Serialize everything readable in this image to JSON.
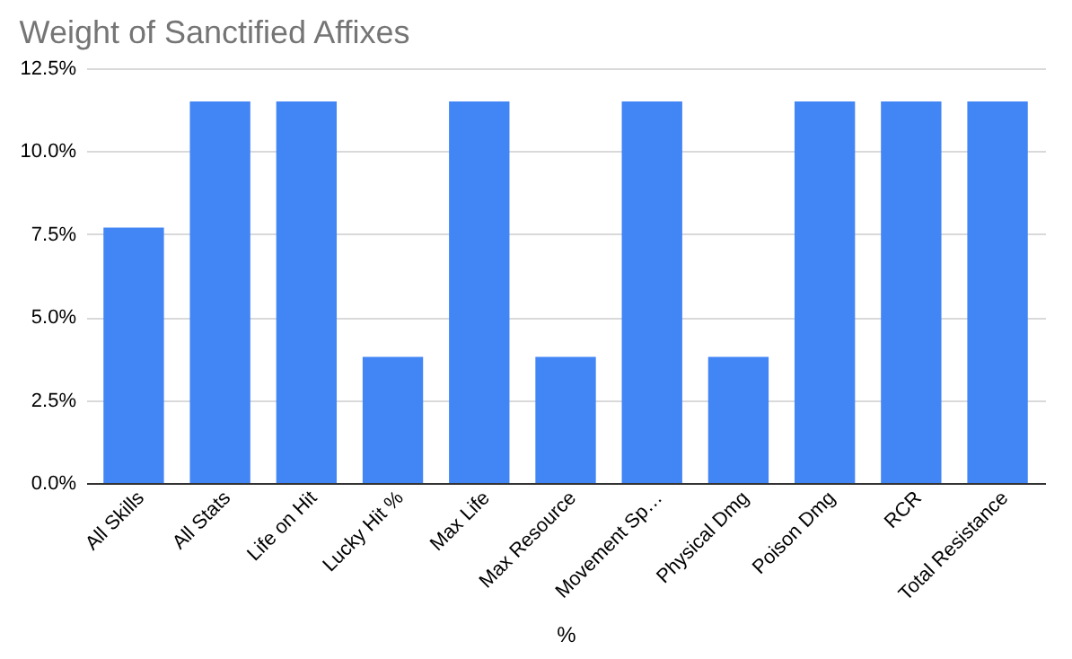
{
  "chart_data": {
    "type": "bar",
    "title": "Weight of Sanctified Affixes",
    "xlabel": "%",
    "categories": [
      "All Skills",
      "All Stats",
      "Life on Hit",
      "Lucky Hit %",
      "Max Life",
      "Max Resource",
      "Movement Sp…",
      "Physical Dmg",
      "Poison Dmg",
      "RCR",
      "Total Resistance"
    ],
    "values": [
      7.7,
      11.5,
      11.5,
      3.8,
      11.5,
      3.8,
      11.5,
      3.8,
      11.5,
      11.5,
      11.5
    ],
    "color": "#4285f4",
    "ylim": [
      0,
      12.5
    ],
    "yticks": [
      {
        "value": 0,
        "label": "0.0%"
      },
      {
        "value": 2.5,
        "label": "2.5%"
      },
      {
        "value": 5,
        "label": "5.0%"
      },
      {
        "value": 7.5,
        "label": "7.5%"
      },
      {
        "value": 10,
        "label": "10.0%"
      },
      {
        "value": 12.5,
        "label": "12.5%"
      }
    ],
    "grid": "y"
  }
}
